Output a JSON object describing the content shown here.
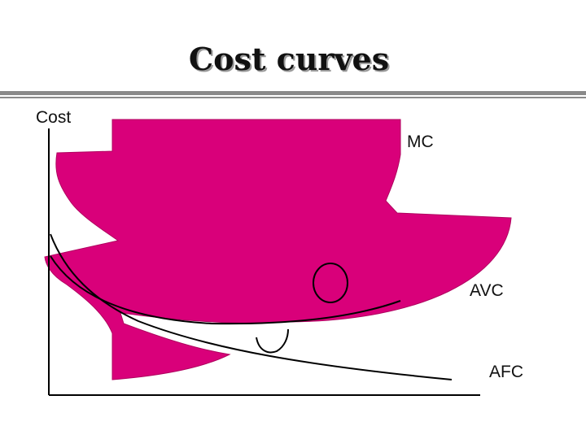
{
  "title": "Cost curves",
  "axes": {
    "y_label": "Cost"
  },
  "curves": {
    "mc": "MC",
    "avc": "AVC",
    "afc": "AFC"
  },
  "colors": {
    "shape_fill": "#d9007a",
    "line": "#000000",
    "rule": "#8a8a8a"
  }
}
